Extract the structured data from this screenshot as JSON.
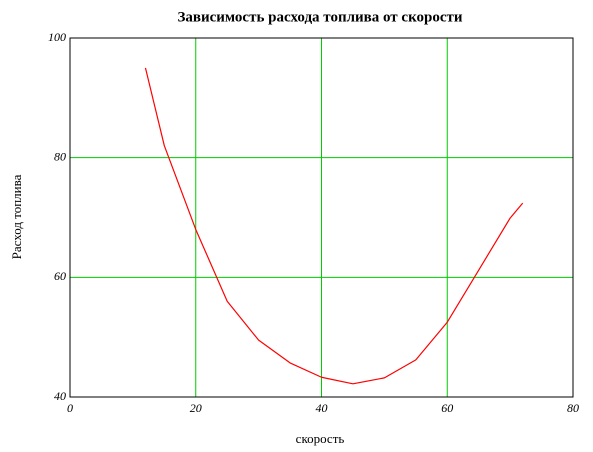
{
  "chart_data": {
    "type": "line",
    "title": "Зависимость расхода топлива от скорости",
    "x_label": "скорость",
    "y_label": "Расход топлива",
    "x": [
      12,
      15,
      20,
      25,
      30,
      35,
      40,
      45,
      50,
      55,
      60,
      65,
      70,
      72
    ],
    "series": [
      {
        "name": "Расход топлива",
        "color": "#ff0000",
        "values": [
          95,
          82,
          68,
          56,
          49.5,
          45.7,
          43.3,
          42.2,
          43.2,
          46.2,
          52.5,
          61.2,
          69.9,
          72.4
        ]
      }
    ],
    "xlim": [
      0,
      80
    ],
    "xticks": [
      0,
      20,
      40,
      60,
      80
    ],
    "ylim": [
      40,
      100
    ],
    "yticks": [
      40,
      60,
      80,
      100
    ],
    "grid": true,
    "grid_color": "#00cc00"
  }
}
